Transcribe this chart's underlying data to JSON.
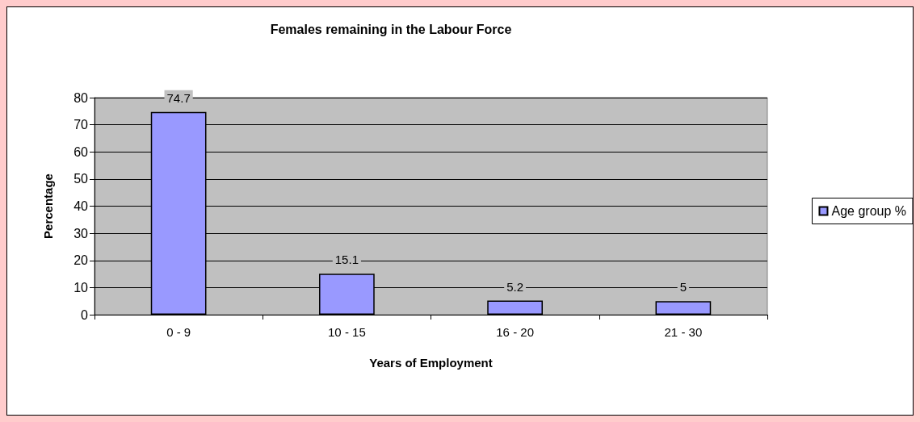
{
  "chart_data": {
    "type": "bar",
    "title": "Females remaining in the Labour Force",
    "xlabel": "Years of Employment",
    "ylabel": "Percentage",
    "categories": [
      "0 - 9",
      "10 - 15",
      "16 - 20",
      "21 - 30"
    ],
    "series": [
      {
        "name": "Age group %",
        "color": "#9999ff",
        "values": [
          74.7,
          15.1,
          5.2,
          5
        ]
      }
    ],
    "ylim": [
      0,
      80
    ],
    "yticks": [
      0,
      10,
      20,
      30,
      40,
      50,
      60,
      70,
      80
    ],
    "grid": "y",
    "legend": "right",
    "data_labels": true
  }
}
